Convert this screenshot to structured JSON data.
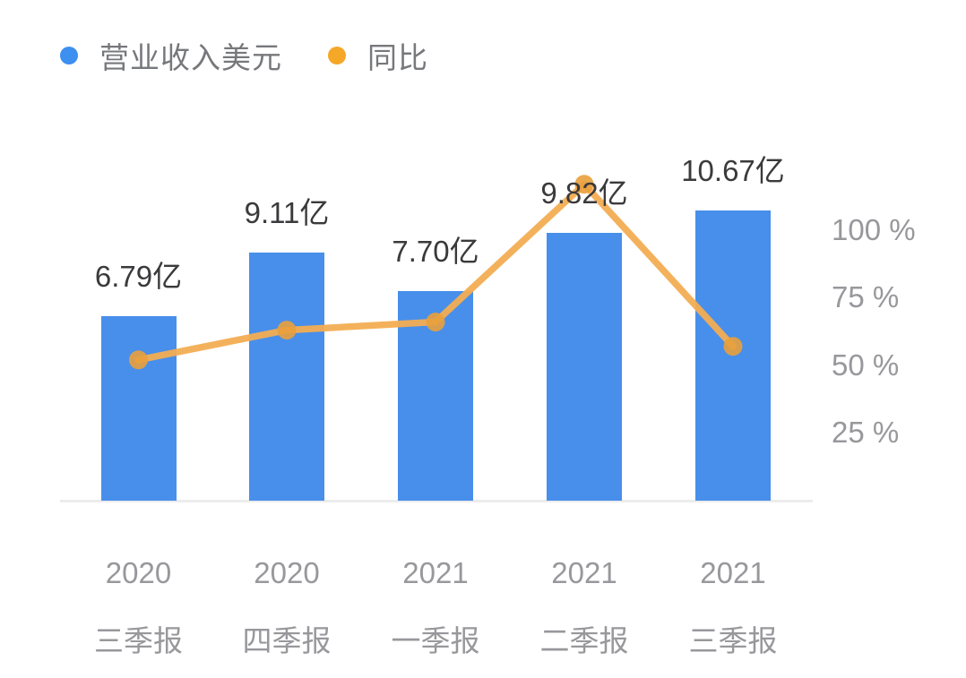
{
  "chart_data": {
    "type": "combo-bar-line",
    "title": "",
    "categories_year": [
      "2020",
      "2020",
      "2021",
      "2021",
      "2021"
    ],
    "categories_period": [
      "三季报",
      "四季报",
      "一季报",
      "二季报",
      "三季报"
    ],
    "series": [
      {
        "name": "营业收入美元",
        "type": "bar",
        "unit": "亿",
        "values": [
          6.79,
          9.11,
          7.7,
          9.82,
          10.67
        ],
        "value_labels": [
          "6.79亿",
          "9.11亿",
          "7.70亿",
          "9.82亿",
          "10.67亿"
        ],
        "color": "#478FEA",
        "legend_color": "#3D8FF0"
      },
      {
        "name": "同比",
        "type": "line",
        "unit": "%",
        "axis": "right",
        "values": [
          52,
          63,
          66,
          117,
          57
        ],
        "color": "#F3AD52",
        "marker_color": "#E9A03C",
        "legend_color": "#F5A728"
      }
    ],
    "right_axis": {
      "tick_labels": [
        "100 %",
        "75 %",
        "50 %",
        "25 %"
      ],
      "tick_values": [
        100,
        75,
        50,
        25
      ],
      "range": [
        0,
        125
      ]
    },
    "grid": false,
    "legend_position": "top-left",
    "background_color": "#FFFFFF",
    "axis_line_color": "#ECECEC",
    "value_label_color": "#3A3A3C",
    "axis_text_color": "#98989C",
    "legend_text_color": "#77787B"
  }
}
